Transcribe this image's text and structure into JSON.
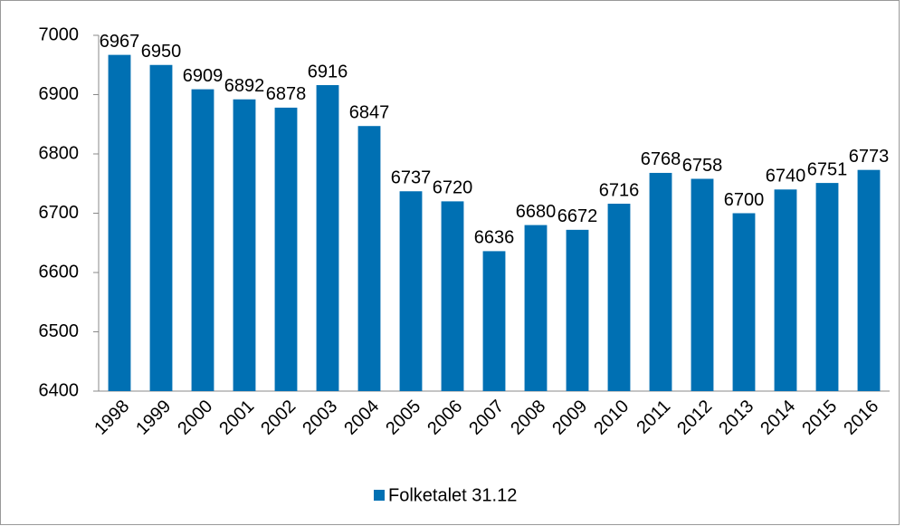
{
  "chart_data": {
    "type": "bar",
    "categories": [
      "1998",
      "1999",
      "2000",
      "2001",
      "2002",
      "2003",
      "2004",
      "2005",
      "2006",
      "2007",
      "2008",
      "2009",
      "2010",
      "2011",
      "2012",
      "2013",
      "2014",
      "2015",
      "2016"
    ],
    "series": [
      {
        "name": "Folketalet 31.12",
        "color": "#0070b3",
        "values": [
          6967,
          6950,
          6909,
          6892,
          6878,
          6916,
          6847,
          6737,
          6720,
          6636,
          6680,
          6672,
          6716,
          6768,
          6758,
          6700,
          6740,
          6751,
          6773
        ]
      }
    ],
    "ylim": [
      6400,
      7000
    ],
    "yticks": [
      6400,
      6500,
      6600,
      6700,
      6800,
      6900,
      7000
    ],
    "grid": false,
    "legend": "bottom"
  }
}
